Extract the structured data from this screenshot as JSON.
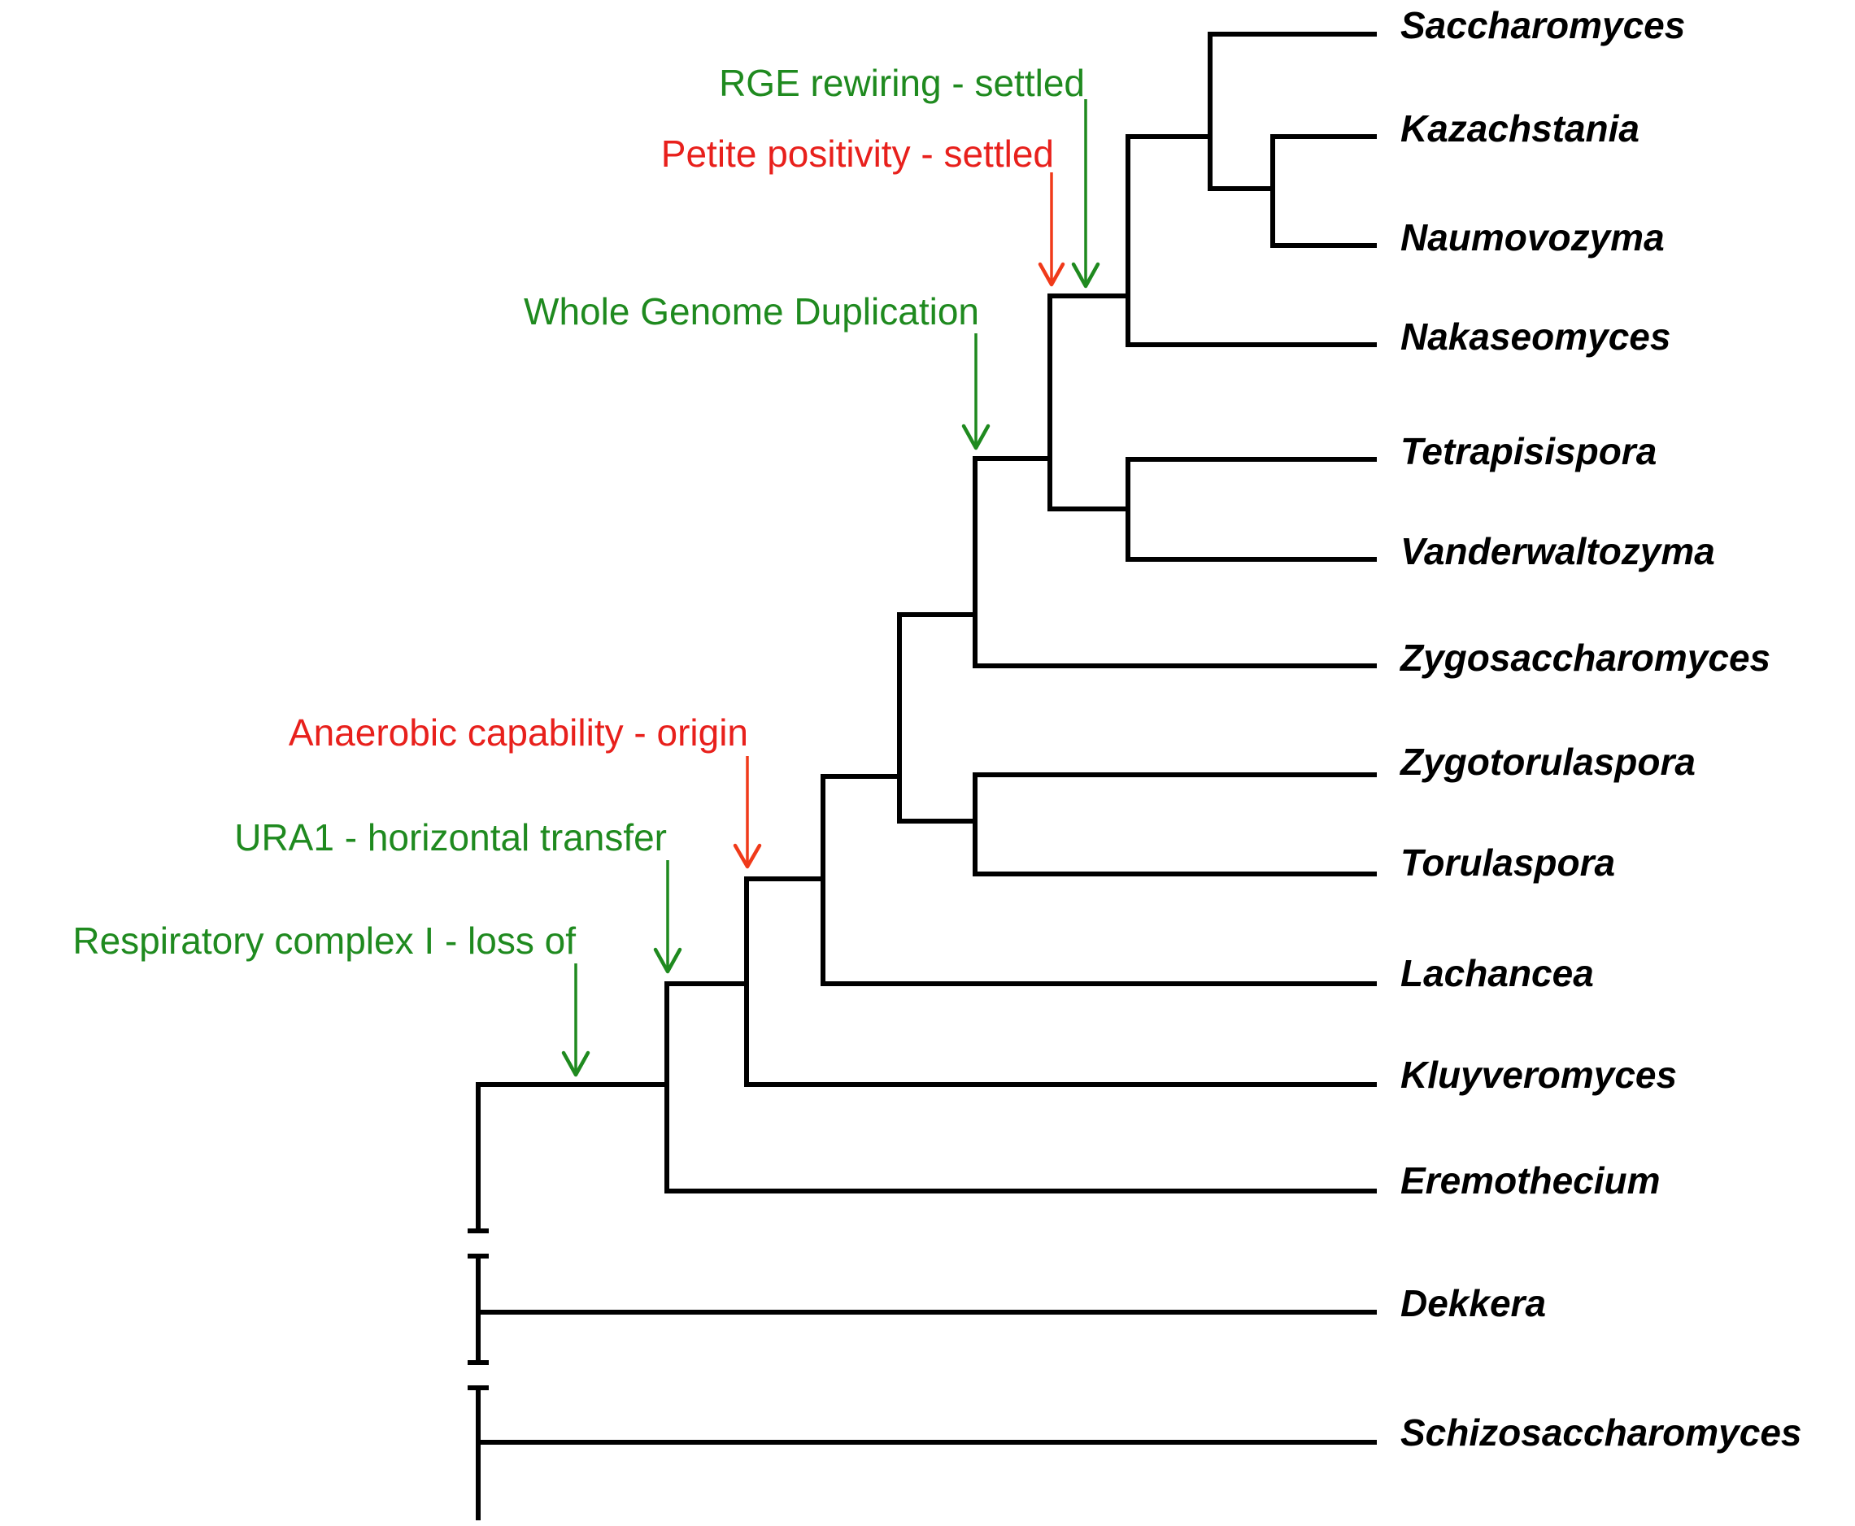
{
  "taxa": [
    "Saccharomyces",
    "Kazachstania",
    "Naumovozyma",
    "Nakaseomyces",
    "Tetrapisispora",
    "Vanderwaltozyma",
    "Zygosaccharomyces",
    "Zygotorulaspora",
    "Torulaspora",
    "Lachancea",
    "Kluyveromyces",
    "Eremothecium",
    "Dekkera",
    "Schizosaccharomyces"
  ],
  "events": [
    {
      "label": "RGE rewiring - settled",
      "color": "#1f8a1f"
    },
    {
      "label": "Petite positivity - settled",
      "color": "#e8201c"
    },
    {
      "label": "Whole Genome Duplication",
      "color": "#1f8a1f"
    },
    {
      "label": "Anaerobic capability - origin",
      "color": "#e8201c"
    },
    {
      "label": "URA1 - horizontal transfer",
      "color": "#1f8a1f"
    },
    {
      "label": "Respiratory complex I - loss of",
      "color": "#1f8a1f"
    }
  ],
  "colors": {
    "branch": "#000000",
    "green": "#1f8a1f",
    "red": "#e8201c",
    "red_arrow": "#f03a1a"
  }
}
